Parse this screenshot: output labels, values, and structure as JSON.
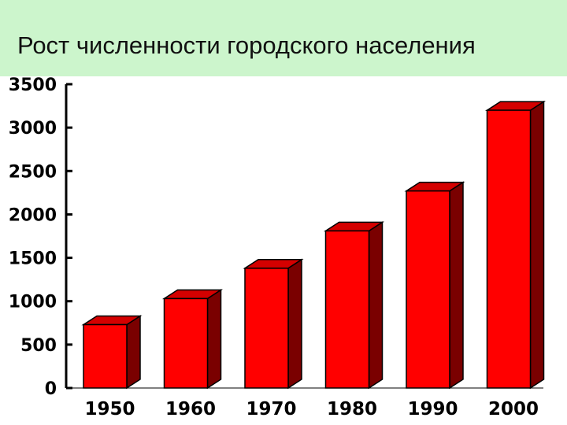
{
  "chart_data": {
    "type": "bar",
    "title": "Рост численности городского населения",
    "categories": [
      "1950",
      "1960",
      "1970",
      "1980",
      "1990",
      "2000"
    ],
    "values": [
      730,
      1030,
      1380,
      1810,
      2270,
      3200
    ],
    "ylim": [
      0,
      3500
    ],
    "yticks": [
      "0",
      "500",
      "1000",
      "1500",
      "2000",
      "2500",
      "3000",
      "3500"
    ],
    "xlabel": "",
    "ylabel": "",
    "grid": false,
    "style": "3d",
    "colors": {
      "front": "#ff0000",
      "side": "#7a0000",
      "top": "#d40000",
      "title_band": "#ccf5cc"
    }
  }
}
